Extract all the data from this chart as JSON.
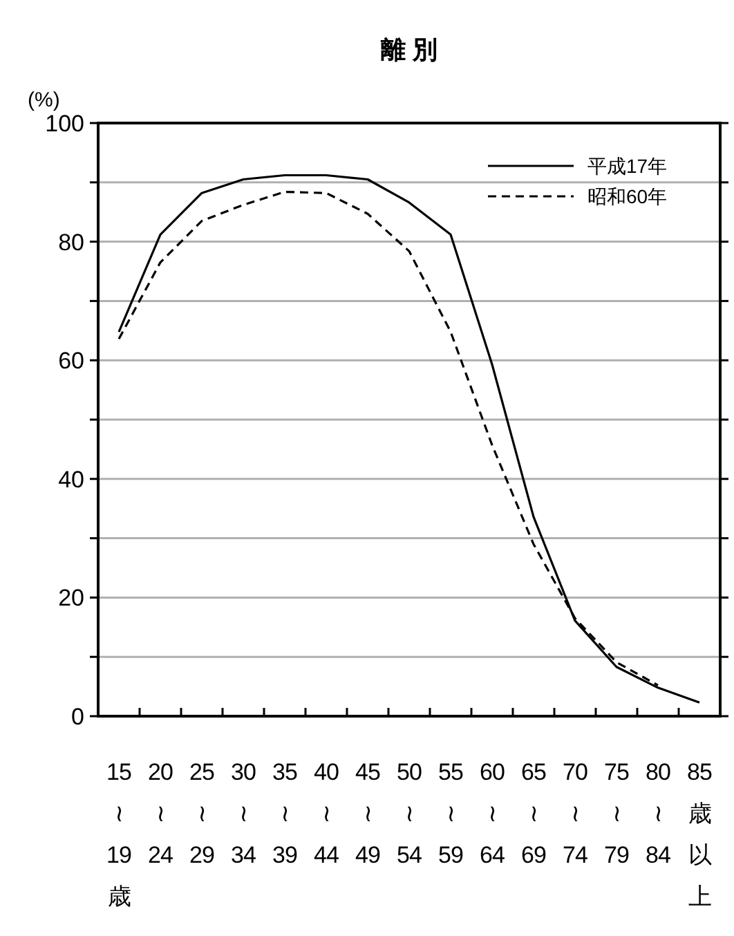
{
  "chart_data": {
    "type": "line",
    "title": "離 別",
    "ylabel": "(%)",
    "categories": [
      "15≀19歳",
      "20≀24",
      "25≀29",
      "30≀34",
      "35≀39",
      "40≀44",
      "45≀49",
      "50≀54",
      "55≀59",
      "60≀64",
      "65≀69",
      "70≀74",
      "75≀79",
      "80≀84",
      "85歳以上"
    ],
    "series": [
      {
        "name": "平成17年",
        "color": "#000000",
        "line_style": "solid",
        "values": [
          64.8,
          81.2,
          88.2,
          90.5,
          91.2,
          91.2,
          90.5,
          86.6,
          81.2,
          59.3,
          33.6,
          16.1,
          8.3,
          4.8,
          2.3
        ]
      },
      {
        "name": "昭和60年",
        "color": "#000000",
        "line_style": "dashed",
        "values": [
          63.6,
          76.5,
          83.5,
          86.2,
          88.4,
          88.2,
          84.7,
          78.4,
          64.8,
          45.7,
          29.0,
          16.5,
          9.1,
          5.2,
          null
        ]
      }
    ],
    "ylim": [
      0,
      100
    ],
    "yticks": [
      0,
      {
        "value": 10,
        "label": null
      },
      20,
      {
        "value": 30,
        "label": null
      },
      40,
      {
        "value": 50,
        "label": null
      },
      60,
      {
        "value": 70,
        "label": null
      },
      80,
      {
        "value": 90,
        "label": null
      },
      100
    ],
    "grid": "y",
    "legend": "top right",
    "marker": "none"
  }
}
